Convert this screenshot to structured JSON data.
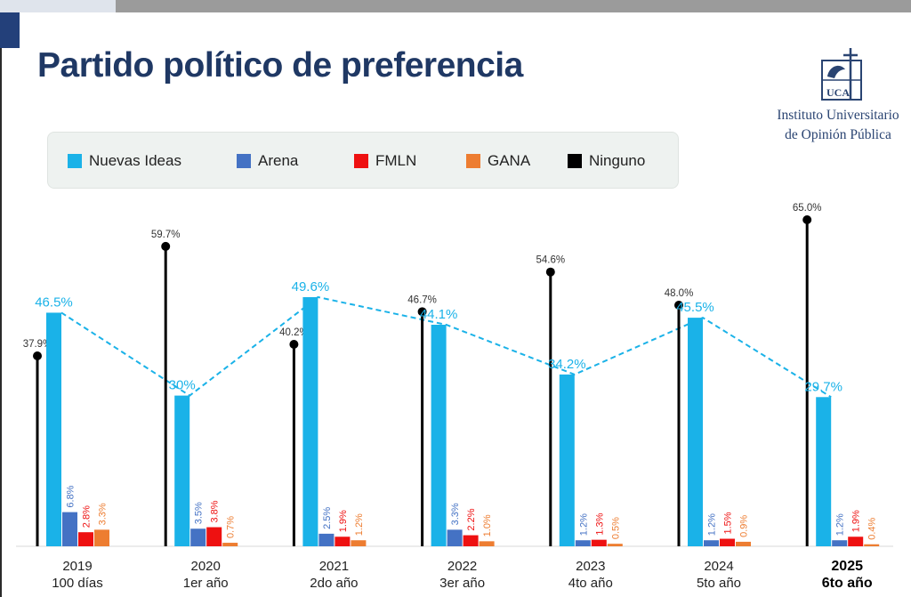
{
  "title": "Partido político de preferencia",
  "logo": {
    "mark_text": "UCA",
    "line1": "Instituto Universitario",
    "line2": "de Opinión Pública"
  },
  "legend": [
    {
      "name": "Nuevas Ideas",
      "color": "#1ab2e8"
    },
    {
      "name": "Arena",
      "color": "#4472c4"
    },
    {
      "name": "FMLN",
      "color": "#ee1111"
    },
    {
      "name": "GANA",
      "color": "#ed7d31"
    },
    {
      "name": "Ninguno",
      "color": "#000000"
    }
  ],
  "chart_data": {
    "type": "bar",
    "title": "Partido político de preferencia",
    "categories": [
      {
        "year": "2019",
        "sub": "100 días",
        "bold": false
      },
      {
        "year": "2020",
        "sub": "1er año",
        "bold": false
      },
      {
        "year": "2021",
        "sub": "2do año",
        "bold": false
      },
      {
        "year": "2022",
        "sub": "3er año",
        "bold": false
      },
      {
        "year": "2023",
        "sub": "4to año",
        "bold": false
      },
      {
        "year": "2024",
        "sub": "5to año",
        "bold": false
      },
      {
        "year": "2025",
        "sub": "6to año",
        "bold": true
      }
    ],
    "series": [
      {
        "name": "Ninguno",
        "marker": "lollipop",
        "color": "#000000",
        "values": [
          37.9,
          59.7,
          40.2,
          46.7,
          54.6,
          48.0,
          65.0
        ],
        "labels": [
          "37.9%",
          "59.7%",
          "40.2%",
          "46.7%",
          "54.6%",
          "48.0%",
          "65.0%"
        ]
      },
      {
        "name": "Nuevas Ideas",
        "color": "#1ab2e8",
        "trend_line": "dashed",
        "values": [
          46.5,
          30,
          49.6,
          44.1,
          34.2,
          45.5,
          29.7
        ],
        "labels": [
          "46.5%",
          "30%",
          "49.6%",
          "44.1%",
          "34.2%",
          "45.5%",
          "29.7%"
        ]
      },
      {
        "name": "Arena",
        "color": "#4472c4",
        "values": [
          6.8,
          3.5,
          2.5,
          3.3,
          1.2,
          1.2,
          1.2
        ],
        "labels": [
          "6.8%",
          "3.5%",
          "2.5%",
          "3.3%",
          "1.2%",
          "1.2%",
          "1.2%"
        ]
      },
      {
        "name": "FMLN",
        "color": "#ee1111",
        "values": [
          2.8,
          3.8,
          1.9,
          2.2,
          1.3,
          1.5,
          1.9
        ],
        "labels": [
          "2.8%",
          "3.8%",
          "1.9%",
          "2.2%",
          "1.3%",
          "1.5%",
          "1.9%"
        ]
      },
      {
        "name": "GANA",
        "color": "#ed7d31",
        "values": [
          3.3,
          0.7,
          1.2,
          1.0,
          0.5,
          0.9,
          0.4
        ],
        "labels": [
          "3.3%",
          "0.7%",
          "1.2%",
          "1.0%",
          "0.5%",
          "0.9%",
          "0.4%"
        ]
      }
    ],
    "ylim": [
      0,
      65
    ],
    "grid": false,
    "legend_position": "top"
  }
}
